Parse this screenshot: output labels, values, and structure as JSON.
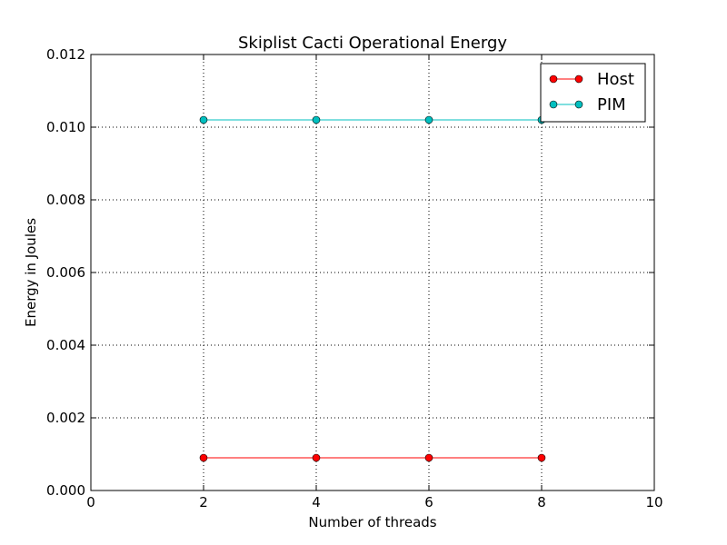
{
  "chart_data": {
    "type": "line",
    "title": "Skiplist Cacti Operational Energy",
    "xlabel": "Number of threads",
    "ylabel": "Energy in Joules",
    "xlim": [
      0,
      10
    ],
    "ylim": [
      0,
      0.012
    ],
    "x_ticks": [
      "0",
      "2",
      "4",
      "6",
      "8",
      "10"
    ],
    "y_ticks": [
      "0.000",
      "0.002",
      "0.004",
      "0.006",
      "0.008",
      "0.010",
      "0.012"
    ],
    "grid": true,
    "legend_position": "top-right",
    "series": [
      {
        "name": "Host",
        "color": "#ff0000",
        "x": [
          2,
          4,
          6,
          8
        ],
        "y": [
          0.0009,
          0.0009,
          0.0009,
          0.0009
        ]
      },
      {
        "name": "PIM",
        "color": "#00bfbf",
        "x": [
          2,
          4,
          6,
          8
        ],
        "y": [
          0.0102,
          0.0102,
          0.0102,
          0.0102
        ]
      }
    ]
  }
}
